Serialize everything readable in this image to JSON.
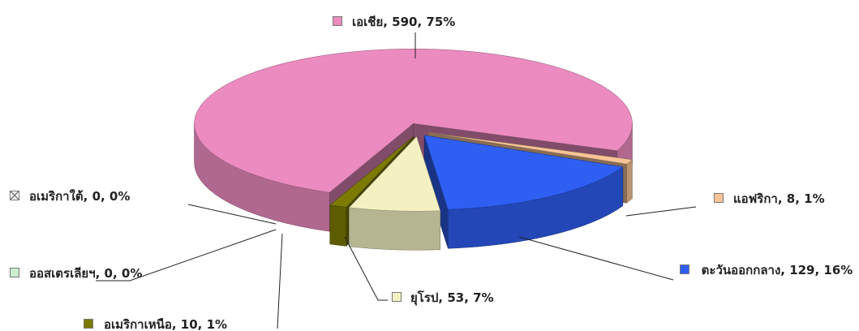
{
  "chart_data": {
    "type": "pie3d",
    "categories": [
      "เอเชีย",
      "แอฟริกา",
      "ตะวันออกกลาง",
      "ยุโรป",
      "อเมริกาใต้",
      "ออสเตรเลียฯ",
      "อเมริกาเหนือ"
    ],
    "values": [
      590,
      8,
      129,
      53,
      0,
      0,
      10
    ],
    "value_labels": [
      "เอเชีย, 590, 75%",
      "แอฟริกา, 8, 1%",
      "ตะวันออกกลาง, 129, 16%",
      "ยุโรป, 53, 7%",
      "อเมริกาใต้, 0, 0%",
      "ออสเตรเลียฯ, 0, 0%",
      "อเมริกาเหนือ, 10, 1%"
    ],
    "colors": [
      "#eb8bbf",
      "#f8c497",
      "#2f5ff2",
      "#f3f1c2",
      "#ffffff",
      "#ccefd0",
      "#7c7a00"
    ]
  }
}
